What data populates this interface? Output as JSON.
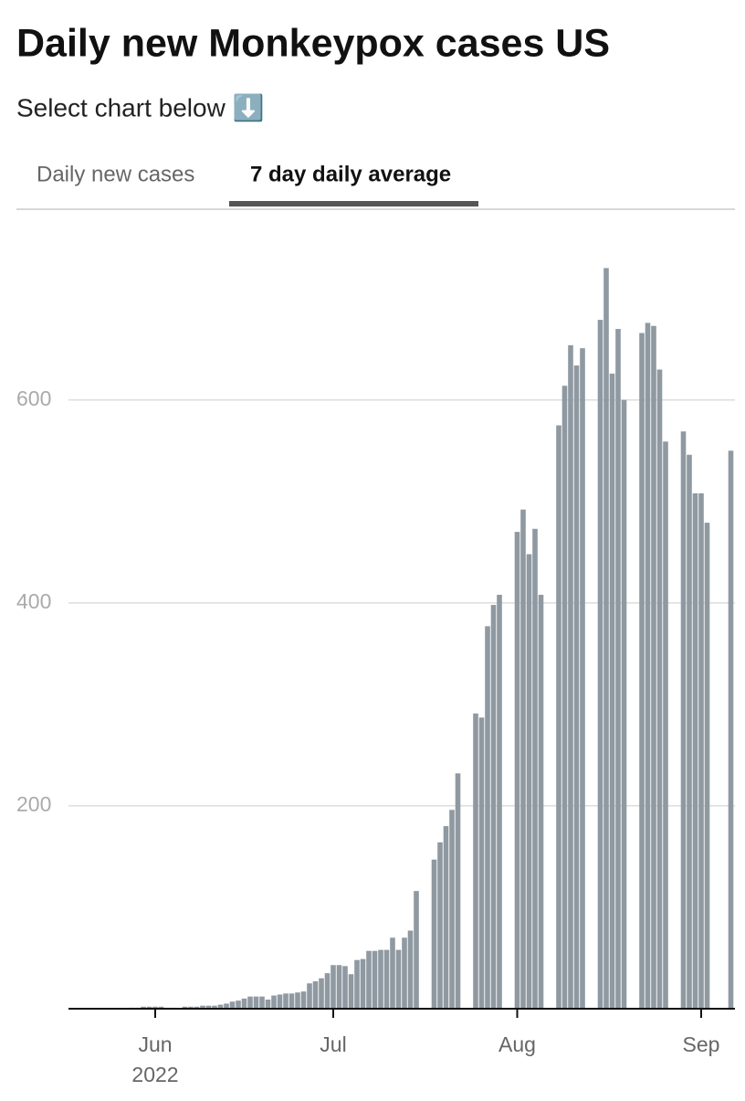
{
  "header": {
    "title": "Daily new Monkeypox cases US",
    "subtitle": "Select chart below ⬇️"
  },
  "tabs": [
    {
      "label": "Daily new cases",
      "active": false
    },
    {
      "label": "7 day daily average",
      "active": true
    }
  ],
  "chart_data": {
    "type": "bar",
    "color": "#8f99a1",
    "grid": true,
    "categories": [
      null,
      null,
      null,
      null,
      null,
      null,
      null,
      null,
      null,
      null,
      null,
      null,
      null,
      null,
      null,
      null,
      null,
      null,
      null,
      null,
      null,
      null,
      null,
      null,
      null,
      null,
      null,
      null,
      null,
      null,
      null,
      null,
      null,
      null,
      null,
      null,
      null,
      null,
      null,
      null,
      null,
      null,
      null,
      null,
      null,
      null,
      null,
      null,
      null,
      null,
      null,
      null,
      null,
      null,
      null,
      null,
      null,
      null,
      null,
      null,
      null,
      null,
      null,
      null,
      null,
      null,
      null,
      null,
      null,
      null,
      null,
      null,
      null,
      null,
      null,
      null,
      null,
      null,
      null,
      null,
      null,
      null,
      null,
      null,
      null,
      null,
      null,
      null,
      null,
      null,
      null,
      null,
      null,
      null,
      null,
      null,
      null,
      null,
      null,
      null,
      null,
      null,
      null,
      null,
      null,
      null,
      null,
      null,
      null,
      null,
      null,
      null,
      null
    ],
    "values": [
      null,
      null,
      null,
      null,
      null,
      null,
      null,
      null,
      null,
      null,
      null,
      1,
      1,
      2,
      2,
      2,
      2,
      1,
      1,
      null,
      2,
      2,
      2,
      3,
      3,
      3,
      4,
      5,
      7,
      8,
      10,
      12,
      12,
      12,
      9,
      13,
      14,
      15,
      15,
      16,
      17,
      25,
      27,
      30,
      35,
      43,
      43,
      42,
      34,
      48,
      49,
      57,
      57,
      58,
      58,
      70,
      58,
      70,
      77,
      116,
      null,
      null,
      147,
      164,
      180,
      196,
      232,
      null,
      null,
      291,
      287,
      377,
      398,
      408,
      null,
      null,
      470,
      492,
      448,
      473,
      408,
      null,
      null,
      575,
      614,
      654,
      634,
      651,
      null,
      null,
      679,
      730,
      626,
      670,
      600,
      null,
      null,
      666,
      676,
      673,
      630,
      559,
      null,
      null,
      569,
      546,
      508,
      508,
      479,
      null,
      null,
      null,
      550
    ],
    "ylim": [
      0,
      770
    ],
    "yticks": [
      200,
      400,
      600
    ],
    "xticks": [
      {
        "value": 15,
        "label": "Jun"
      },
      {
        "value": 45,
        "label": "Jul"
      },
      {
        "value": 76,
        "label": "Aug"
      },
      {
        "value": 107,
        "label": "Sep"
      }
    ],
    "xtick_year": "2022"
  }
}
